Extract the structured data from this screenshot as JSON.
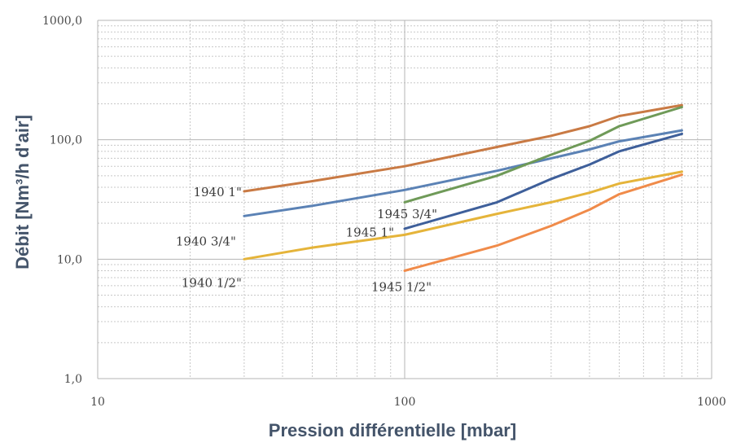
{
  "chart_data": {
    "type": "line",
    "title": "",
    "xlabel": "Pression différentielle [mbar]",
    "ylabel": "Débit [Nm³/h d'air]",
    "xscale": "log",
    "yscale": "log",
    "xlim": [
      10,
      1000
    ],
    "ylim": [
      1,
      1000
    ],
    "grid": "major and minor",
    "legend": "none (series labelled directly)",
    "x_ticks": [
      {
        "value": 10,
        "label": "10"
      },
      {
        "value": 100,
        "label": "100"
      },
      {
        "value": 1000,
        "label": "1000"
      }
    ],
    "y_ticks": [
      {
        "value": 1,
        "label": "1,0"
      },
      {
        "value": 10,
        "label": "10,0"
      },
      {
        "value": 100,
        "label": "100,0"
      },
      {
        "value": 1000,
        "label": "1000,0"
      }
    ],
    "series": [
      {
        "name": "1940 1\"",
        "color": "#c97a44",
        "x": [
          30,
          50,
          100,
          200,
          300,
          400,
          500,
          800
        ],
        "y": [
          37,
          45,
          60,
          87,
          108,
          130,
          158,
          195
        ]
      },
      {
        "name": "1940 3/4\"",
        "color": "#5b82b5",
        "x": [
          30,
          50,
          100,
          200,
          300,
          400,
          500,
          800
        ],
        "y": [
          23,
          28,
          38,
          55,
          70,
          83,
          97,
          120
        ]
      },
      {
        "name": "1940 1/2\"",
        "color": "#e5b43a",
        "x": [
          30,
          50,
          100,
          200,
          300,
          400,
          500,
          800
        ],
        "y": [
          10,
          12.5,
          16,
          24,
          30,
          36,
          43,
          54
        ]
      },
      {
        "name": "1945 1\"",
        "color": "#6f9a58",
        "x": [
          100,
          200,
          300,
          400,
          500,
          800
        ],
        "y": [
          30,
          50,
          75,
          98,
          130,
          188
        ]
      },
      {
        "name": "1945 3/4\"",
        "color": "#3e5f9a",
        "x": [
          100,
          200,
          300,
          400,
          500,
          800
        ],
        "y": [
          18,
          30,
          47,
          62,
          80,
          112
        ]
      },
      {
        "name": "1945 1/2\"",
        "color": "#f08b4a",
        "x": [
          100,
          200,
          300,
          400,
          500,
          800
        ],
        "y": [
          8,
          13,
          19,
          26,
          35,
          51
        ]
      }
    ]
  }
}
